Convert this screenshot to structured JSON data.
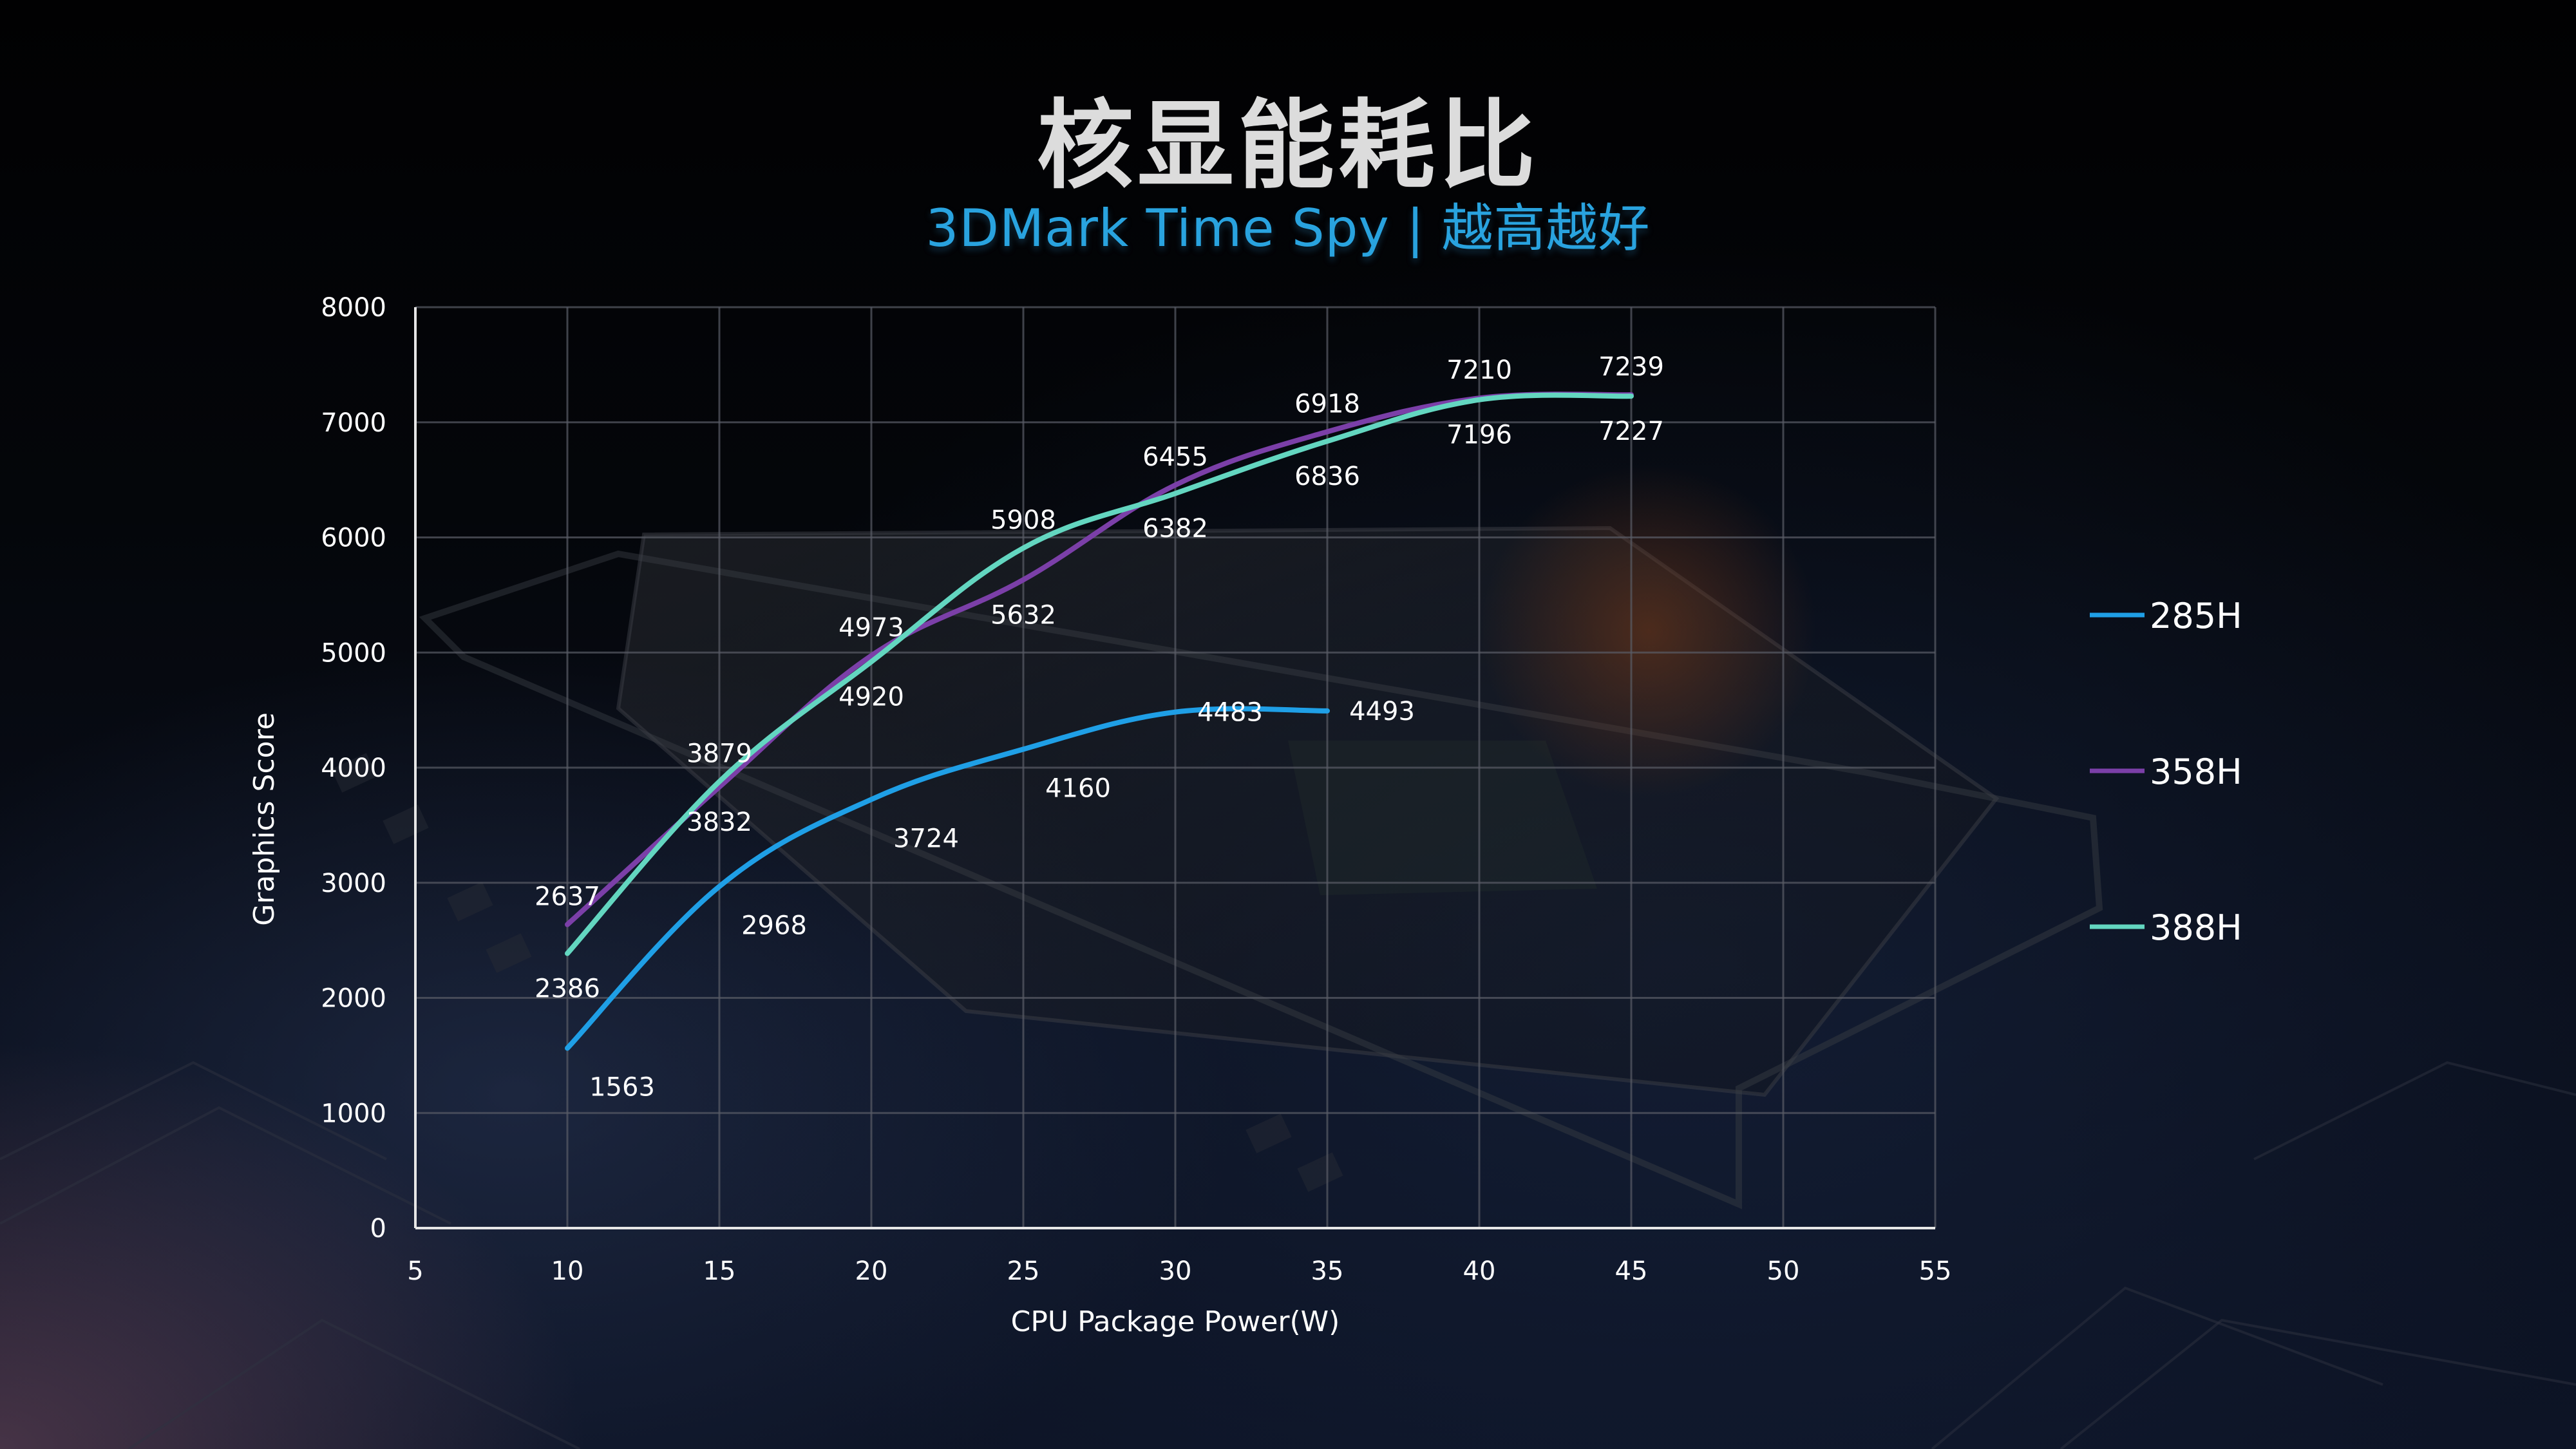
{
  "header": {
    "title": "核显能耗比",
    "subtitle": "3DMark Time Spy | 越高越好"
  },
  "chart_data": {
    "type": "line",
    "title": "核显能耗比",
    "subtitle": "3DMark Time Spy | 越高越好",
    "xlabel": "CPU Package Power(W)",
    "ylabel": "Graphics Score",
    "xlim": [
      5,
      55
    ],
    "ylim": [
      0,
      8000
    ],
    "xticks": [
      "5",
      "10",
      "15",
      "20",
      "25",
      "30",
      "35",
      "40",
      "45",
      "50",
      "55"
    ],
    "yticks": [
      "0",
      "1000",
      "2000",
      "3000",
      "4000",
      "5000",
      "6000",
      "7000",
      "8000"
    ],
    "grid": true,
    "legend_position": "right",
    "series": [
      {
        "name": "285H",
        "color": "#1f9fe6",
        "x": [
          10,
          15,
          20,
          25,
          30,
          35
        ],
        "y": [
          1563,
          2968,
          3724,
          4160,
          4483,
          4493
        ],
        "labels": [
          "1563",
          "2968",
          "3724",
          "4160",
          "4483",
          "4493"
        ]
      },
      {
        "name": "358H",
        "color": "#7b3fa8",
        "x": [
          10,
          15,
          20,
          25,
          30,
          35,
          40,
          45
        ],
        "y": [
          2637,
          3832,
          4973,
          5632,
          6455,
          6918,
          7210,
          7239
        ],
        "labels": [
          "2637",
          "3832",
          "4973",
          "5632",
          "6455",
          "6918",
          "7210",
          "7239"
        ]
      },
      {
        "name": "388H",
        "color": "#63d6c0",
        "x": [
          10,
          15,
          20,
          25,
          30,
          35,
          40,
          45
        ],
        "y": [
          2386,
          3879,
          4920,
          5908,
          6382,
          6836,
          7196,
          7227
        ],
        "labels": [
          "2386",
          "3879",
          "4920",
          "5908",
          "6382",
          "6836",
          "7196",
          "7227"
        ]
      }
    ]
  },
  "colors": {
    "title": "#dcdcdc",
    "subtitle": "#29a3df",
    "grid": "#5a5d66",
    "axis": "#e6e6e6"
  }
}
